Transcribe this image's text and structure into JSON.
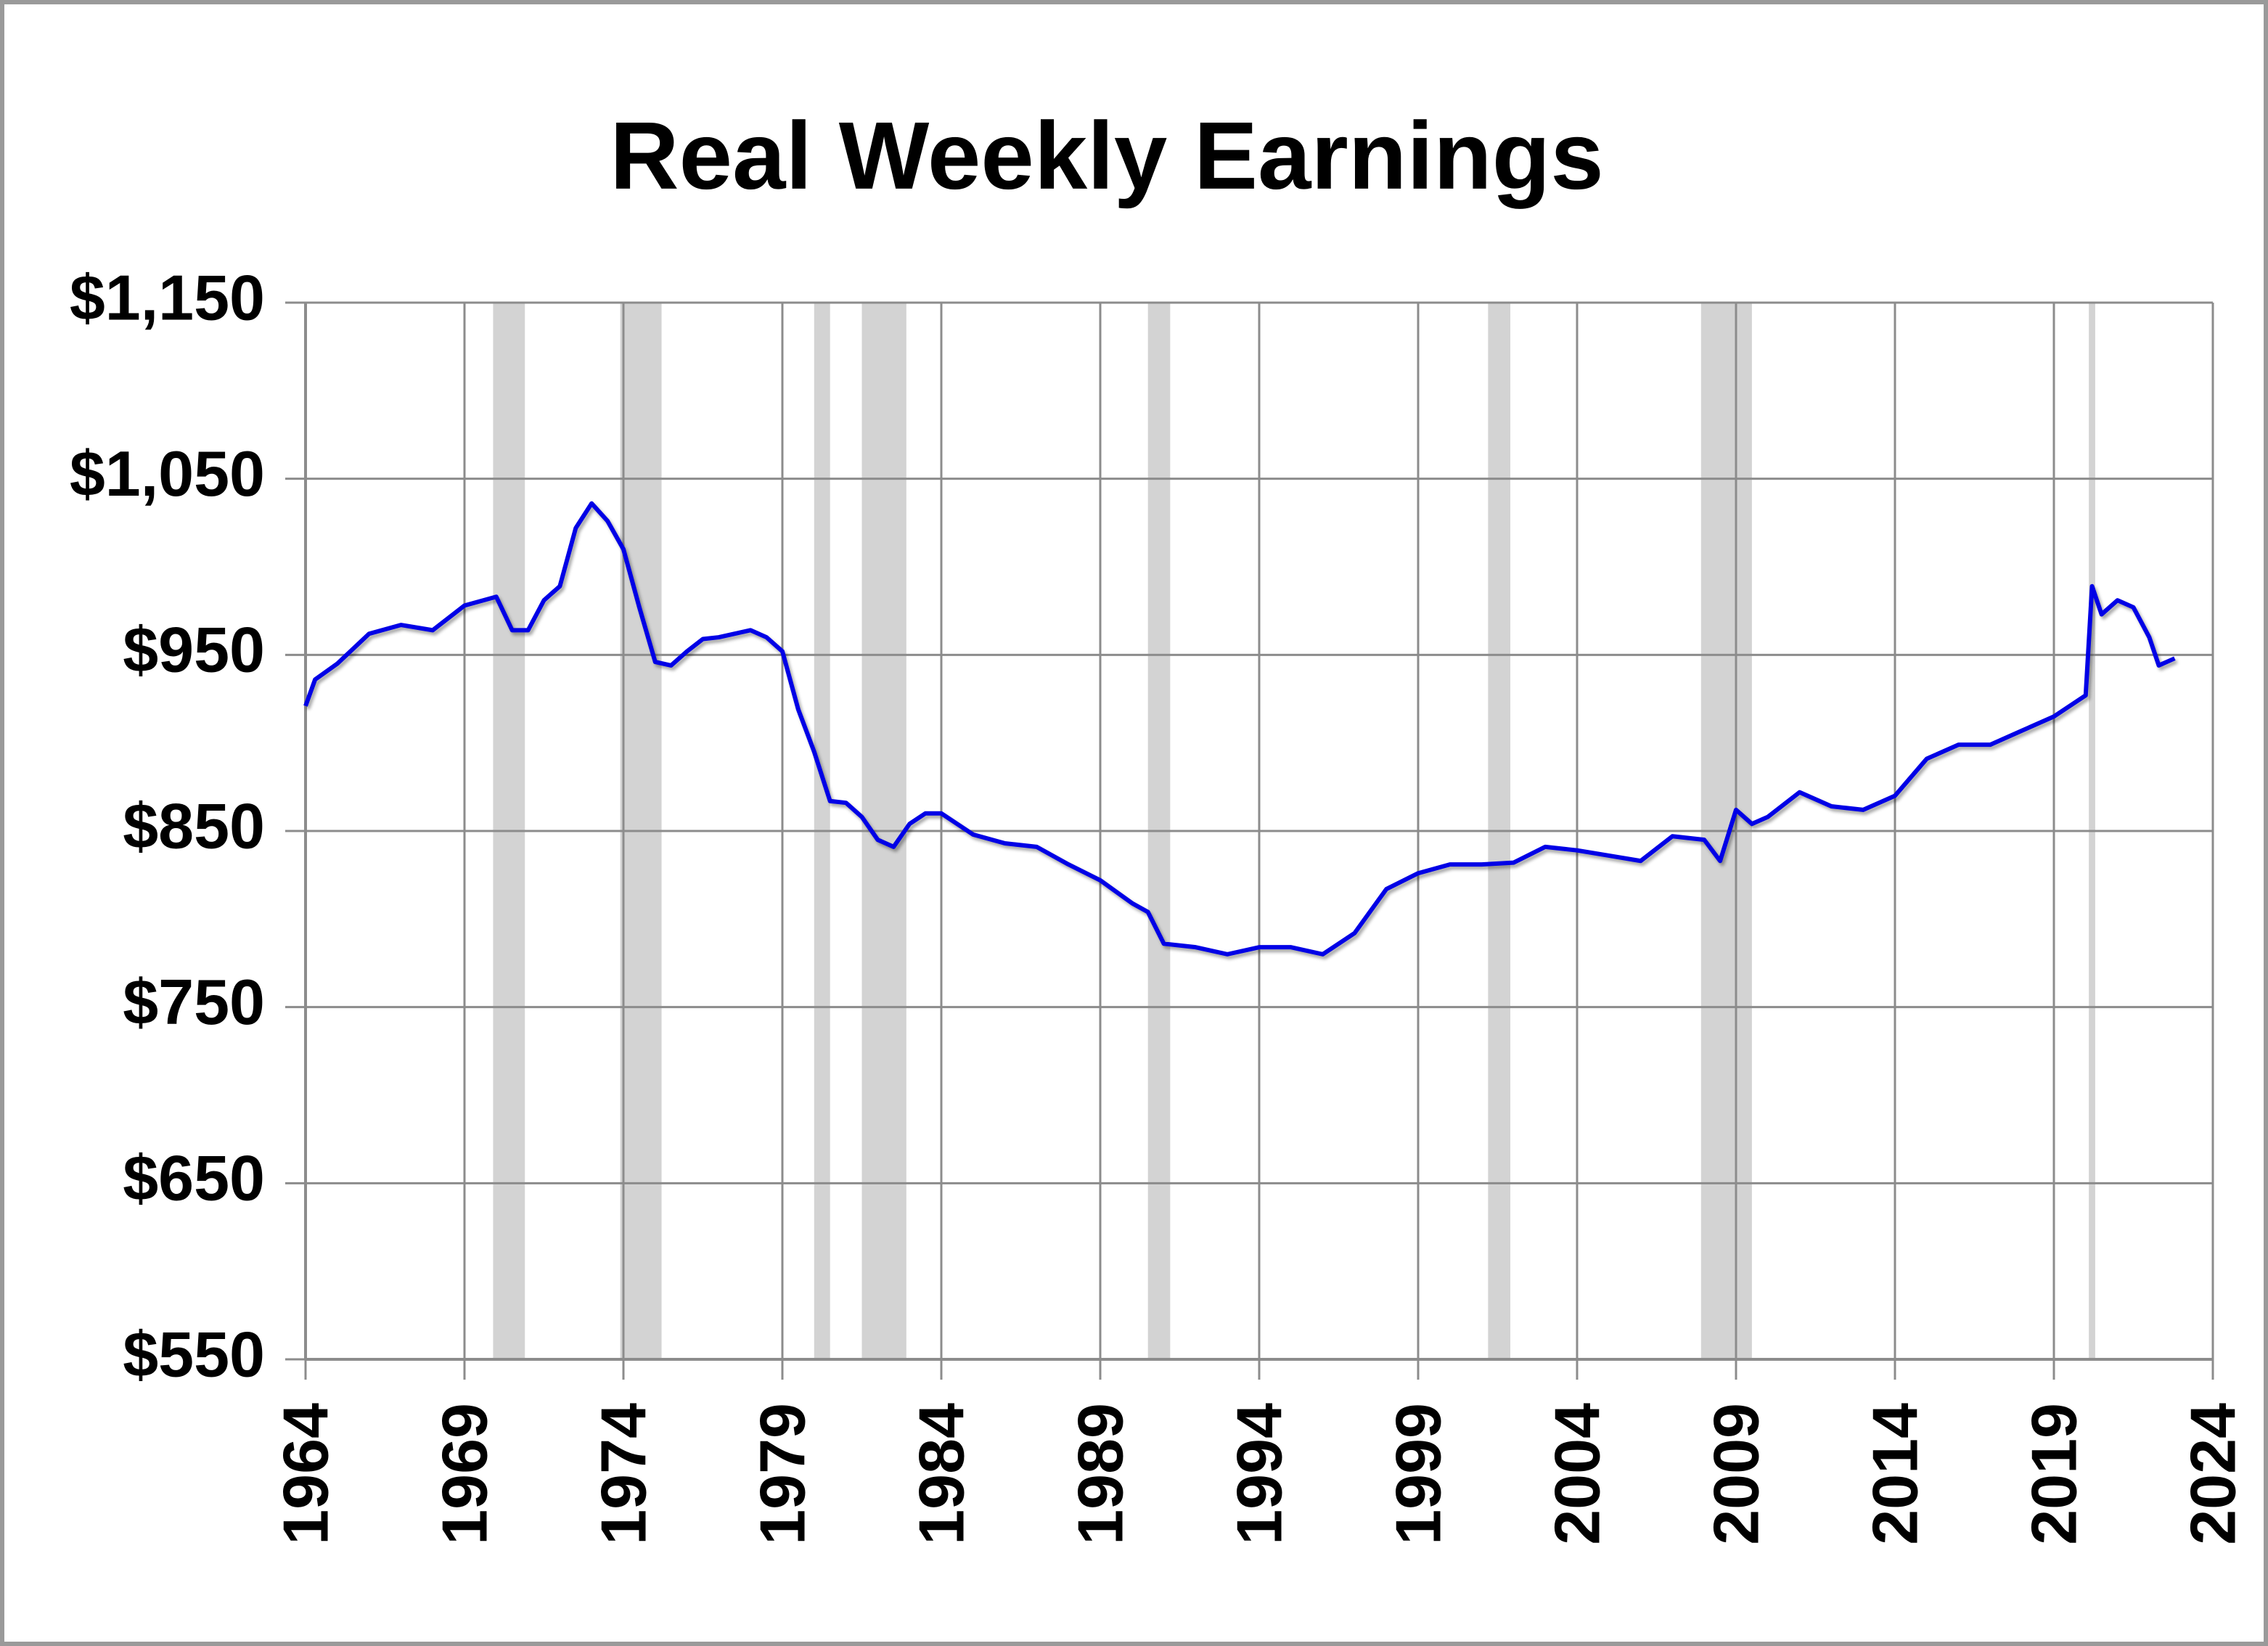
{
  "chart_data": {
    "type": "line",
    "title": "Real Weekly Earnings",
    "x": [
      1964.0,
      1964.3,
      1965.0,
      1966.0,
      1967.0,
      1968.0,
      1969.0,
      1970.0,
      1970.5,
      1971.0,
      1971.5,
      1972.0,
      1972.5,
      1973.0,
      1973.5,
      1974.0,
      1974.5,
      1975.0,
      1975.5,
      1976.0,
      1976.5,
      1977.0,
      1977.5,
      1978.0,
      1978.5,
      1979.0,
      1979.5,
      1980.0,
      1980.5,
      1981.0,
      1981.5,
      1982.0,
      1982.5,
      1983.0,
      1983.5,
      1984.0,
      1985.0,
      1986.0,
      1987.0,
      1988.0,
      1989.0,
      1990.0,
      1990.5,
      1991.0,
      1992.0,
      1993.0,
      1994.0,
      1995.0,
      1996.0,
      1997.0,
      1998.0,
      1999.0,
      2000.0,
      2001.0,
      2002.0,
      2003.0,
      2004.0,
      2005.0,
      2006.0,
      2007.0,
      2008.0,
      2008.5,
      2009.0,
      2009.5,
      2010.0,
      2011.0,
      2012.0,
      2013.0,
      2014.0,
      2015.0,
      2016.0,
      2017.0,
      2018.0,
      2019.0,
      2020.0,
      2020.2,
      2020.5,
      2021.0,
      2021.5,
      2022.0,
      2022.3,
      2022.8
    ],
    "series": [
      {
        "name": "Real Weekly Earnings",
        "color": "#0000e6",
        "values": [
          921,
          936,
          945,
          962,
          967,
          964,
          978,
          983,
          964,
          964,
          981,
          989,
          1022,
          1036,
          1026,
          1010,
          977,
          946,
          944,
          952,
          959,
          960,
          962,
          964,
          960,
          952,
          919,
          895,
          867,
          866,
          858,
          845,
          841,
          854,
          860,
          860,
          848,
          843,
          841,
          831,
          822,
          809,
          804,
          786,
          784,
          780,
          784,
          784,
          780,
          792,
          817,
          826,
          831,
          831,
          832,
          841,
          839,
          836,
          833,
          847,
          845,
          833,
          862,
          854,
          858,
          872,
          864,
          862,
          870,
          891,
          899,
          899,
          907,
          915,
          927,
          989,
          973,
          981,
          977,
          960,
          944,
          948
        ]
      }
    ],
    "recessions": [
      [
        1969.9,
        1970.9
      ],
      [
        1973.9,
        1975.2
      ],
      [
        1980.0,
        1980.5
      ],
      [
        1981.5,
        1982.9
      ],
      [
        1990.5,
        1991.2
      ],
      [
        2001.2,
        2001.9
      ],
      [
        2007.9,
        2009.5
      ],
      [
        2020.1,
        2020.3
      ]
    ],
    "recession_color": "#d3d3d3",
    "xlim": [
      1964,
      2024
    ],
    "xticks": [
      1964,
      1969,
      1974,
      1979,
      1984,
      1989,
      1994,
      1999,
      2004,
      2009,
      2014,
      2019,
      2024
    ],
    "ylim": [
      550,
      1150
    ],
    "yticks": [
      {
        "value": 550,
        "label": "$550"
      },
      {
        "value": 650,
        "label": "$650"
      },
      {
        "value": 750,
        "label": "$750"
      },
      {
        "value": 850,
        "label": "$850"
      },
      {
        "value": 950,
        "label": "$950"
      },
      {
        "value": 1050,
        "label": "$1,050"
      },
      {
        "value": 1150,
        "label": "$1,150"
      }
    ],
    "grid": true
  }
}
